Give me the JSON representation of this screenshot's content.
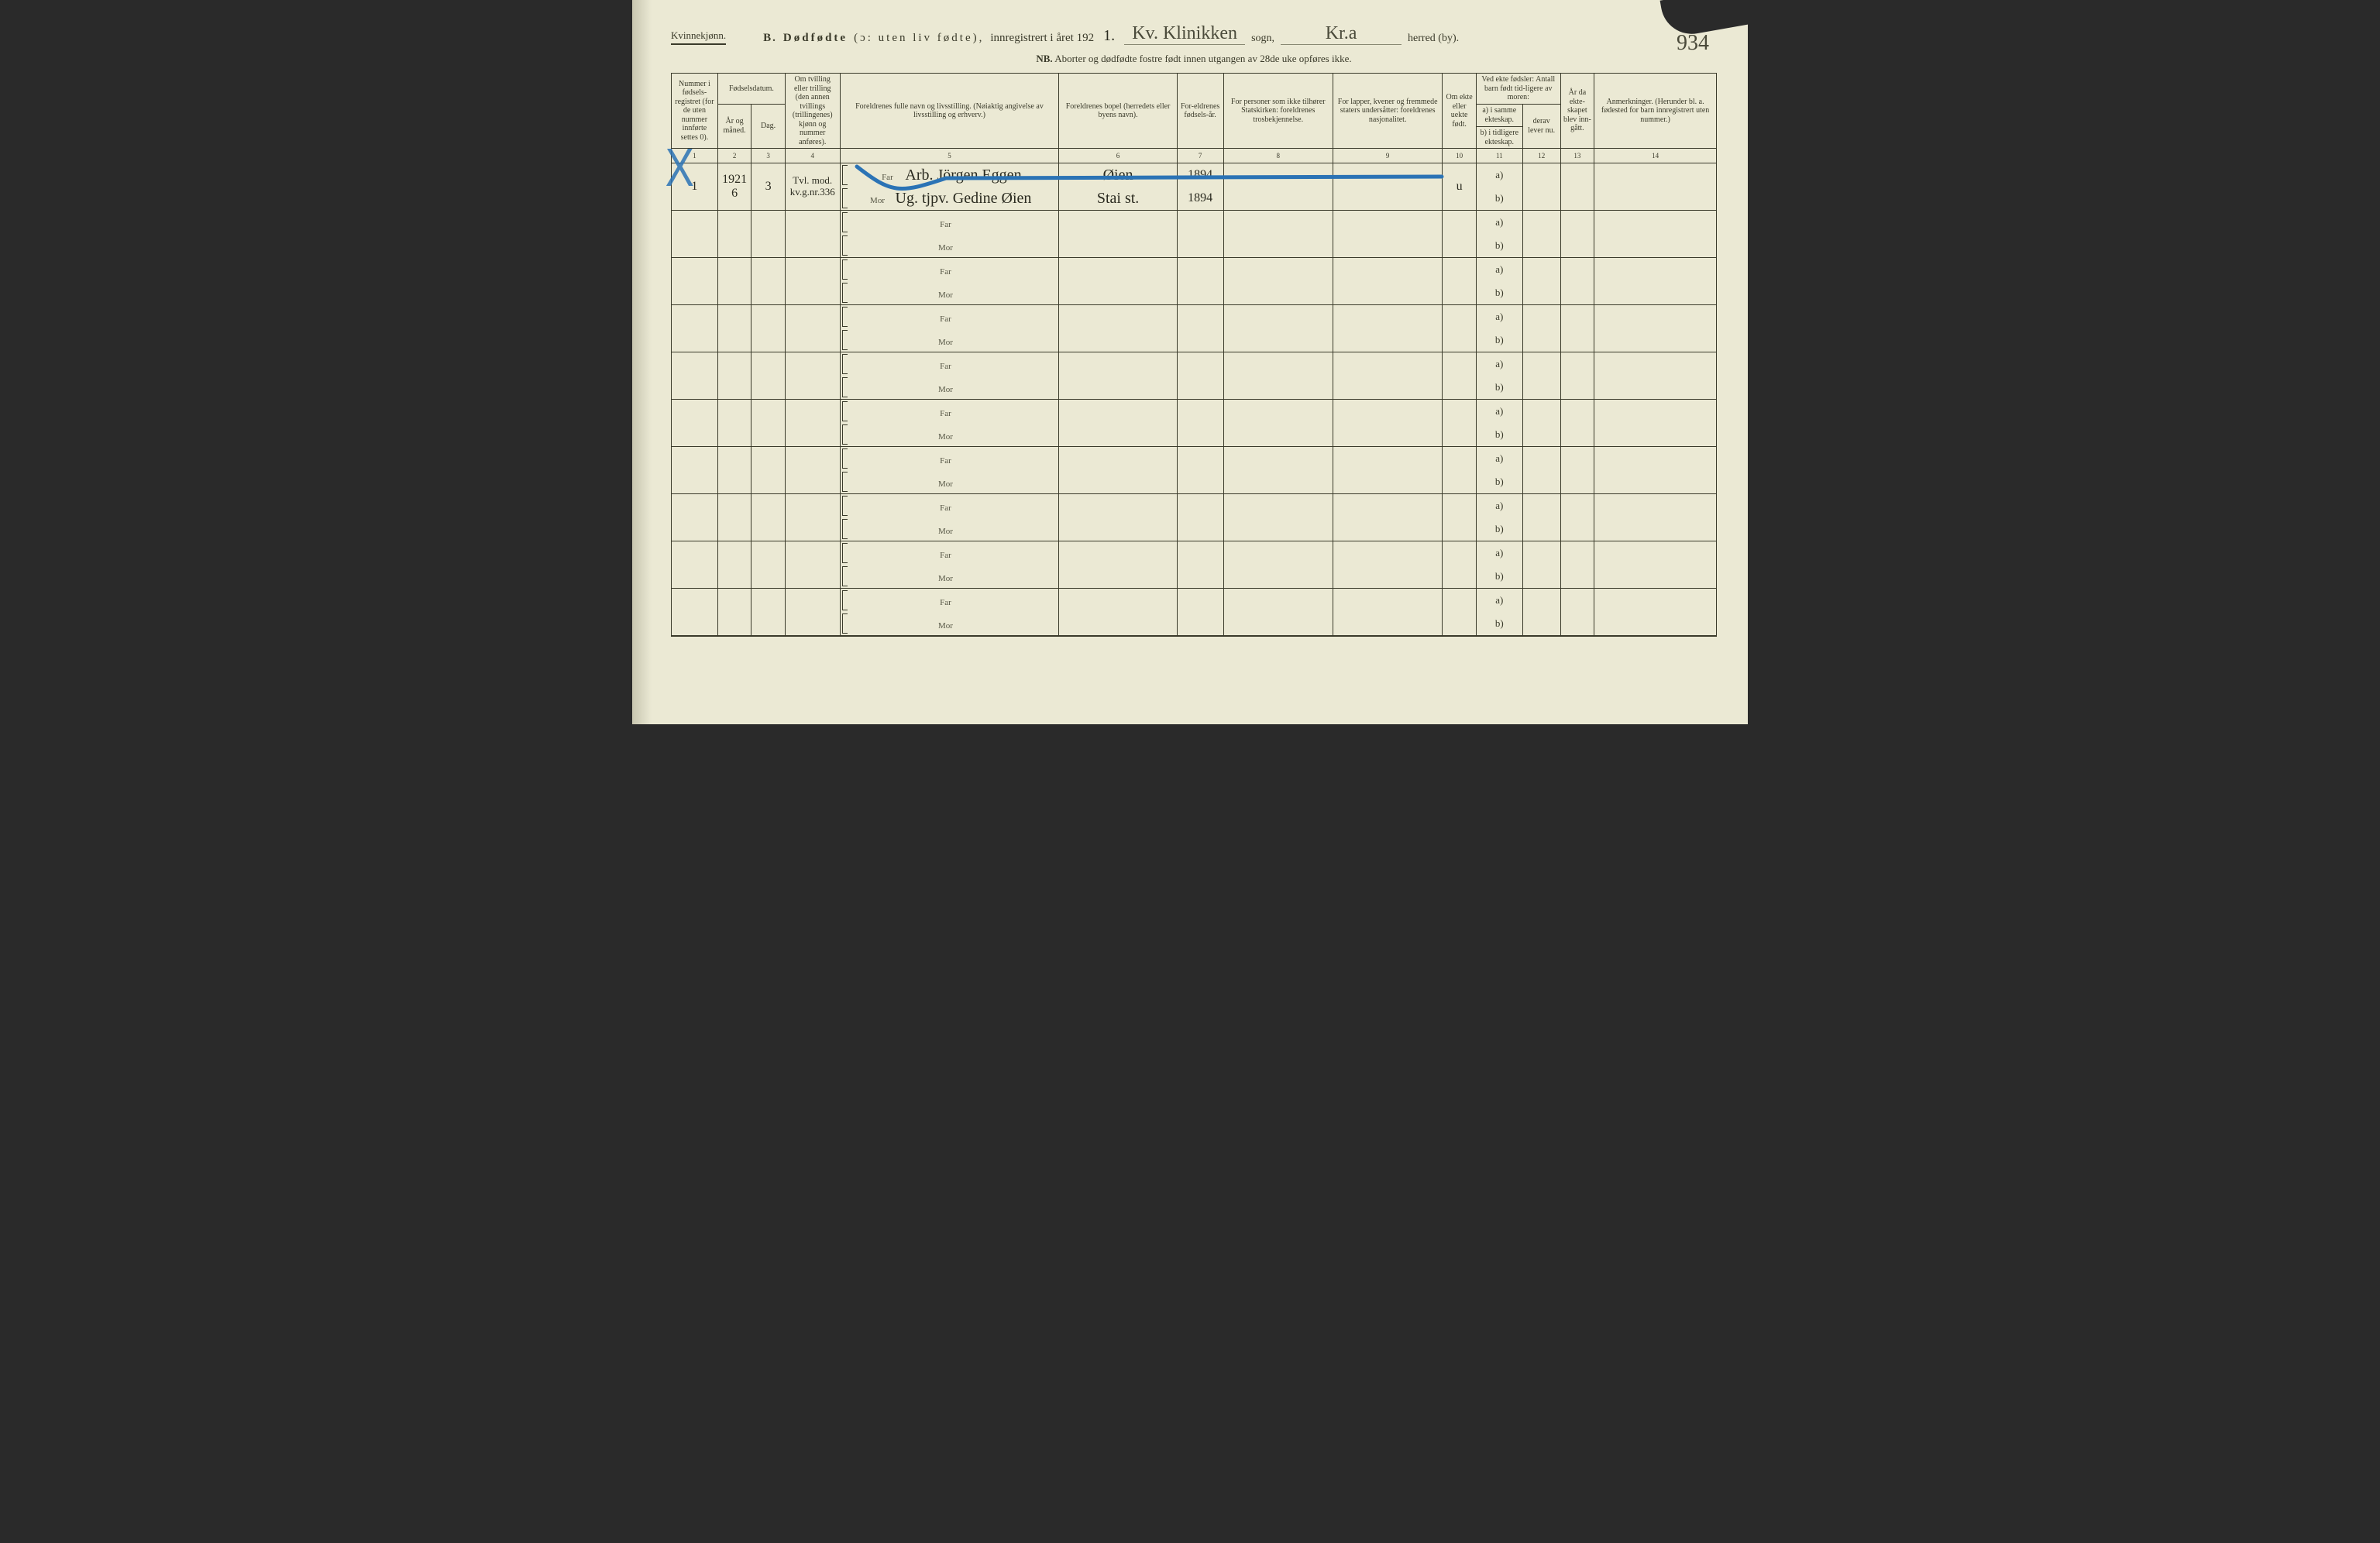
{
  "header": {
    "gender": "Kvinnekjønn.",
    "section_letter": "B.",
    "title_bold": "Dødfødte",
    "title_paren": "(ɔ: uten liv fødte),",
    "title_reg": "innregistrert i året 192",
    "year_suffix": "1.",
    "sogn_value": "Kv. Klinikken",
    "sogn_label": "sogn,",
    "herred_value": "Kr.a",
    "herred_label": "herred (by).",
    "page_number": "934"
  },
  "nb": {
    "prefix": "NB.",
    "text": "Aborter og dødfødte fostre født innen utgangen av 28de uke opføres ikke."
  },
  "columns": {
    "c1": "Nummer i fødsels-registret (for de uten nummer innførte settes 0).",
    "c2_group": "Fødselsdatum.",
    "c2a": "År og måned.",
    "c2b": "Dag.",
    "c4": "Om tvilling eller trilling (den annen tvillings (trillingenes) kjønn og nummer anføres).",
    "c5": "Foreldrenes fulle navn og livsstilling. (Nøiaktig angivelse av livsstilling og erhverv.)",
    "c6": "Foreldrenes bopel (herredets eller byens navn).",
    "c7": "For-eldrenes fødsels-år.",
    "c8": "For personer som ikke tilhører Statskirken: foreldrenes trosbekjennelse.",
    "c9": "For lapper, kvener og fremmede staters undersåtter: foreldrenes nasjonalitet.",
    "c10": "Om ekte eller uekte født.",
    "c11_top": "Ved ekte fødsler: Antall barn født tid-ligere av moren:",
    "c11a": "a) i samme ekteskap.",
    "c11b": "b) i tidligere ekteskap.",
    "c12": "derav lever nu.",
    "c13": "År da ekte-skapet blev inn-gått.",
    "c14": "Anmerkninger. (Herunder bl. a. fødested for barn innregistrert uten nummer.)"
  },
  "colnums": [
    "1",
    "2",
    "3",
    "4",
    "5",
    "6",
    "7",
    "8",
    "9",
    "10",
    "11",
    "12",
    "13",
    "14"
  ],
  "parent_labels": {
    "far": "Far",
    "mor": "Mor"
  },
  "ab_labels": {
    "a": "a)",
    "b": "b)"
  },
  "entries": [
    {
      "num": "1",
      "year_month": "1921 6",
      "day": "3",
      "twin": "Tvl. mod. kv.g.nr.336",
      "far_name": "Arb. Jörgen Eggen",
      "mor_name": "Ug. tjpv. Gedine Øien",
      "far_bopel": "Øien",
      "mor_bopel": "Stai st.",
      "far_year": "1894",
      "mor_year": "1894",
      "ekte": "u"
    },
    {},
    {},
    {},
    {},
    {},
    {},
    {},
    {},
    {}
  ],
  "colors": {
    "paper": "#ebe9d4",
    "ink": "#3a3a2a",
    "blue": "#2b73b5",
    "hand": "#2b2b20"
  }
}
